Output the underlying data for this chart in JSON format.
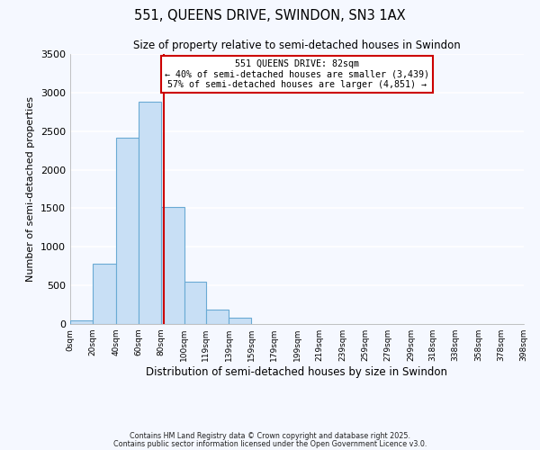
{
  "title": "551, QUEENS DRIVE, SWINDON, SN3 1AX",
  "subtitle": "Size of property relative to semi-detached houses in Swindon",
  "xlabel": "Distribution of semi-detached houses by size in Swindon",
  "ylabel": "Number of semi-detached properties",
  "bar_color": "#c8dff5",
  "bar_edge_color": "#6aaad4",
  "fig_bg_color": "#f5f8ff",
  "plot_bg_color": "#f5f8ff",
  "grid_color": "#ffffff",
  "annotation_box_color": "#cc0000",
  "vline_color": "#cc0000",
  "bins": [
    0,
    20,
    40,
    60,
    80,
    100,
    119,
    139,
    159,
    179,
    199,
    219,
    239,
    259,
    279,
    299,
    318,
    338,
    358,
    378,
    398
  ],
  "bin_labels": [
    "0sqm",
    "20sqm",
    "40sqm",
    "60sqm",
    "80sqm",
    "100sqm",
    "119sqm",
    "139sqm",
    "159sqm",
    "179sqm",
    "199sqm",
    "219sqm",
    "239sqm",
    "259sqm",
    "279sqm",
    "299sqm",
    "318sqm",
    "338sqm",
    "358sqm",
    "378sqm",
    "398sqm"
  ],
  "counts": [
    50,
    780,
    2420,
    2880,
    1520,
    550,
    190,
    80,
    0,
    0,
    0,
    0,
    0,
    0,
    0,
    0,
    0,
    0,
    0,
    0
  ],
  "property_size": 82,
  "property_label": "551 QUEENS DRIVE: 82sqm",
  "pct_smaller": 40,
  "pct_larger": 57,
  "n_smaller": 3439,
  "n_larger": 4851,
  "ylim": [
    0,
    3500
  ],
  "yticks": [
    0,
    500,
    1000,
    1500,
    2000,
    2500,
    3000,
    3500
  ],
  "footnote1": "Contains HM Land Registry data © Crown copyright and database right 2025.",
  "footnote2": "Contains public sector information licensed under the Open Government Licence v3.0."
}
